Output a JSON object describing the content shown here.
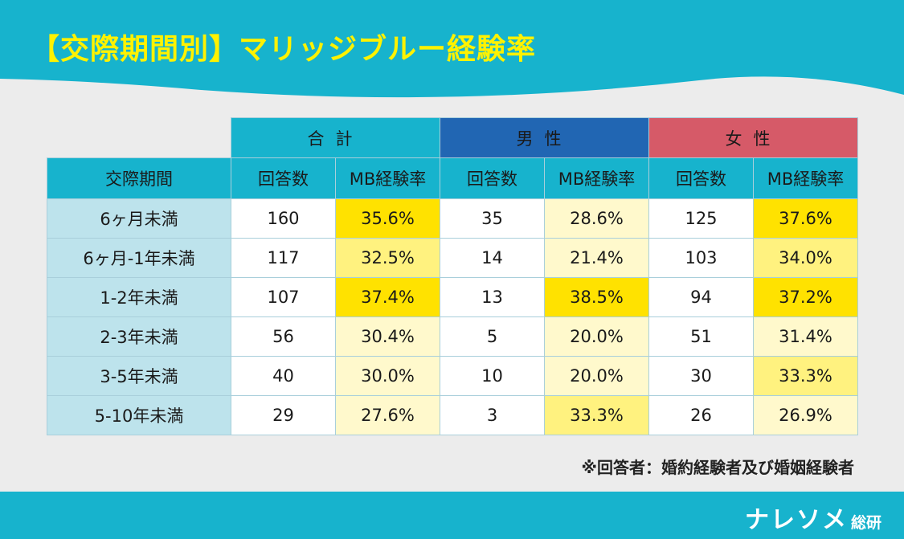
{
  "title": "【交際期間別】マリッジブルー経験率",
  "footnote": "※回答者：婚約経験者及び婚姻経験者",
  "logo": {
    "name": "ナレソメ",
    "suffix": "総研"
  },
  "colors": {
    "header_cyan": "#17b3cd",
    "male_blue": "#2166b3",
    "female_red": "#d65a68",
    "title_yellow": "#fff200",
    "highlight_high": "#ffe200",
    "highlight_mid": "#fff27f",
    "highlight_low": "#fff9cc"
  },
  "table": {
    "groups": [
      "合計",
      "男性",
      "女性"
    ],
    "row_header": "交際期間",
    "sub_headers": [
      "回答数",
      "MB経験率",
      "回答数",
      "MB経験率",
      "回答数",
      "MB経験率"
    ],
    "rows": [
      {
        "label": "6ヶ月未満",
        "cells": [
          "160",
          "35.6%",
          "35",
          "28.6%",
          "125",
          "37.6%"
        ],
        "levels": [
          3,
          1,
          3
        ]
      },
      {
        "label": "6ヶ月-1年未満",
        "cells": [
          "117",
          "32.5%",
          "14",
          "21.4%",
          "103",
          "34.0%"
        ],
        "levels": [
          2,
          1,
          2
        ]
      },
      {
        "label": "1-2年未満",
        "cells": [
          "107",
          "37.4%",
          "13",
          "38.5%",
          "94",
          "37.2%"
        ],
        "levels": [
          3,
          3,
          3
        ]
      },
      {
        "label": "2-3年未満",
        "cells": [
          "56",
          "30.4%",
          "5",
          "20.0%",
          "51",
          "31.4%"
        ],
        "levels": [
          1,
          1,
          1
        ]
      },
      {
        "label": "3-5年未満",
        "cells": [
          "40",
          "30.0%",
          "10",
          "20.0%",
          "30",
          "33.3%"
        ],
        "levels": [
          1,
          1,
          2
        ]
      },
      {
        "label": "5-10年未満",
        "cells": [
          "29",
          "27.6%",
          "3",
          "33.3%",
          "26",
          "26.9%"
        ],
        "levels": [
          1,
          2,
          1
        ]
      }
    ]
  },
  "chart_data": {
    "type": "table",
    "title": "【交際期間別】マリッジブルー経験率",
    "columns": [
      "交際期間",
      "合計 回答数",
      "合計 MB経験率",
      "男性 回答数",
      "男性 MB経験率",
      "女性 回答数",
      "女性 MB経験率"
    ],
    "categories": [
      "6ヶ月未満",
      "6ヶ月-1年未満",
      "1-2年未満",
      "2-3年未満",
      "3-5年未満",
      "5-10年未満"
    ],
    "series": [
      {
        "name": "合計 回答数",
        "values": [
          160,
          117,
          107,
          56,
          40,
          29
        ]
      },
      {
        "name": "合計 MB経験率",
        "values": [
          35.6,
          32.5,
          37.4,
          30.4,
          30.0,
          27.6
        ]
      },
      {
        "name": "男性 回答数",
        "values": [
          35,
          14,
          13,
          5,
          10,
          3
        ]
      },
      {
        "name": "男性 MB経験率",
        "values": [
          28.6,
          21.4,
          38.5,
          20.0,
          20.0,
          33.3
        ]
      },
      {
        "name": "女性 回答数",
        "values": [
          125,
          103,
          94,
          51,
          30,
          26
        ]
      },
      {
        "name": "女性 MB経験率",
        "values": [
          37.6,
          34.0,
          37.2,
          31.4,
          33.3,
          26.9
        ]
      }
    ]
  }
}
